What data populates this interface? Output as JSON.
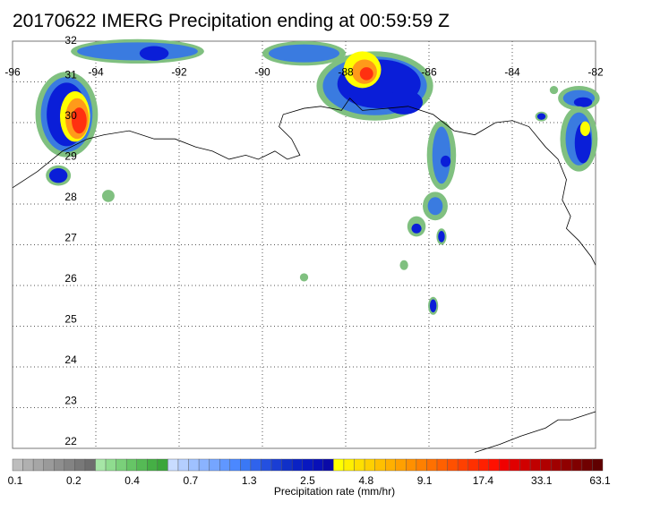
{
  "title": "20170622 IMERG Precipitation ending at 00:59:59 Z",
  "map": {
    "lon_range": [
      -96,
      -82
    ],
    "lat_range": [
      22,
      32
    ],
    "lon_labels": [
      "-96",
      "-94",
      "-92",
      "-90",
      "-88",
      "-86",
      "-84",
      "-82"
    ],
    "lat_labels": [
      "22",
      "23",
      "24",
      "25",
      "26",
      "27",
      "28",
      "29",
      "30",
      "31",
      "32"
    ],
    "colors": {
      "coast": "#000000",
      "grid": "#555555",
      "outline": "#80c080",
      "light_blue": "#3a7be0",
      "blue": "#0a1ed8",
      "yellow": "#ffff00",
      "orange": "#ff9a1a",
      "red": "#ff3010"
    }
  },
  "colorbar": {
    "label": "Precipitation rate (mm/hr)",
    "tick_labels": [
      "0.1",
      "0.2",
      "0.4",
      "0.7",
      "1.3",
      "2.5",
      "4.8",
      "9.1",
      "17.4",
      "33.1",
      "63.1"
    ],
    "colors": [
      "#bdbdbd",
      "#b0b0b0",
      "#a6a6a6",
      "#9a9a9a",
      "#8e8e8e",
      "#838383",
      "#787878",
      "#6e6e6e",
      "#a6e6a6",
      "#8fdc8f",
      "#7ad07a",
      "#66c566",
      "#55ba55",
      "#45af45",
      "#3aa63a",
      "#c8dcff",
      "#b4ceff",
      "#9fc1ff",
      "#8ab3ff",
      "#75a5ff",
      "#6097ff",
      "#4b88ff",
      "#3a78f5",
      "#2f63ec",
      "#2450e0",
      "#1a3ed4",
      "#1030c8",
      "#0a22c4",
      "#0818c0",
      "#0810b8",
      "#0a0aa8",
      "#ffff00",
      "#ffef00",
      "#ffdf00",
      "#ffd000",
      "#ffc000",
      "#ffb000",
      "#ffa000",
      "#ff9000",
      "#ff8000",
      "#ff7000",
      "#ff6000",
      "#ff5000",
      "#ff4000",
      "#ff3000",
      "#ff2000",
      "#ff1000",
      "#f00000",
      "#e00000",
      "#d00000",
      "#c00000",
      "#b00000",
      "#a00000",
      "#900000",
      "#800000",
      "#700000",
      "#600000"
    ]
  }
}
